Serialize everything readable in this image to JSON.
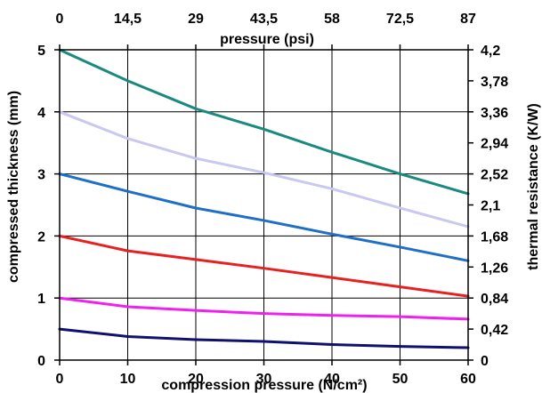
{
  "chart_data": {
    "type": "line",
    "title": "",
    "xlabel": "compression pressure (N/cm²)",
    "ylabel": "compressed thickness (mm)",
    "x2label": "pressure (psi)",
    "y2label": "thermal resistance (K/W)",
    "xlim": [
      0,
      60
    ],
    "ylim": [
      0,
      5
    ],
    "xticks": [
      "0",
      "10",
      "20",
      "30",
      "40",
      "50",
      "60"
    ],
    "yticks": [
      "0",
      "1",
      "2",
      "3",
      "4",
      "5"
    ],
    "x2ticks": [
      "0",
      "14,5",
      "29",
      "43,5",
      "58",
      "72,5",
      "87"
    ],
    "y2ticks": [
      "0",
      "0,42",
      "0,84",
      "1,26",
      "1,68",
      "2,1",
      "2,52",
      "2,94",
      "3,36",
      "3,78",
      "4,2"
    ],
    "grid": true,
    "legend": "none",
    "x": [
      0,
      10,
      20,
      30,
      40,
      50,
      60
    ],
    "series": [
      {
        "color": "#1a8a80",
        "values": [
          5.0,
          4.5,
          4.05,
          3.72,
          3.35,
          3.0,
          2.68
        ]
      },
      {
        "color": "#c8c8f0",
        "values": [
          4.0,
          3.57,
          3.25,
          3.02,
          2.76,
          2.45,
          2.15
        ]
      },
      {
        "color": "#1f6fc9",
        "values": [
          3.0,
          2.72,
          2.45,
          2.25,
          2.03,
          1.82,
          1.6
        ]
      },
      {
        "color": "#e82020",
        "values": [
          2.0,
          1.76,
          1.62,
          1.48,
          1.33,
          1.18,
          1.03
        ]
      },
      {
        "color": "#f020f0",
        "values": [
          1.0,
          0.86,
          0.8,
          0.75,
          0.72,
          0.7,
          0.66
        ]
      },
      {
        "color": "#10106e",
        "values": [
          0.5,
          0.38,
          0.33,
          0.3,
          0.25,
          0.22,
          0.2
        ]
      }
    ]
  }
}
